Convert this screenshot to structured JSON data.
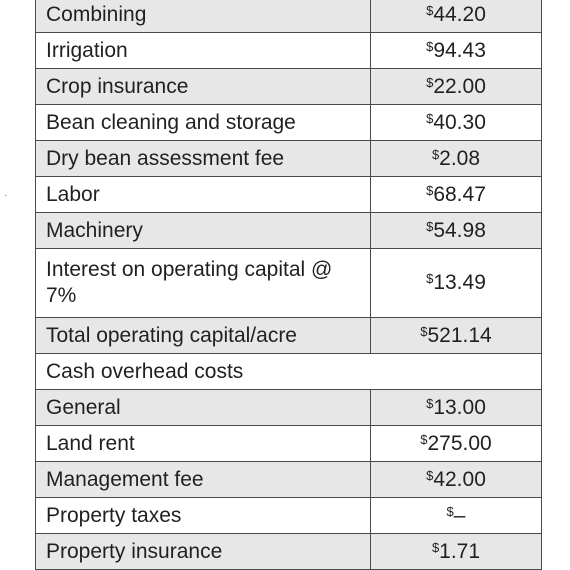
{
  "stray_mark": "·",
  "rows": [
    {
      "label": "Combining",
      "currency": "$",
      "amount": "44.20",
      "shaded": true,
      "tall": false
    },
    {
      "label": "Irrigation",
      "currency": "$",
      "amount": "94.43",
      "shaded": false,
      "tall": false
    },
    {
      "label": "Crop insurance",
      "currency": "$",
      "amount": "22.00",
      "shaded": true,
      "tall": false
    },
    {
      "label": "Bean cleaning and storage",
      "currency": "$",
      "amount": "40.30",
      "shaded": false,
      "tall": false
    },
    {
      "label": "Dry bean assessment fee",
      "currency": "$",
      "amount": "2.08",
      "shaded": true,
      "tall": false
    },
    {
      "label": "Labor",
      "currency": "$",
      "amount": "68.47",
      "shaded": false,
      "tall": false
    },
    {
      "label": "Machinery",
      "currency": "$",
      "amount": "54.98",
      "shaded": true,
      "tall": false
    },
    {
      "label": "Interest on operating capital @ 7%",
      "currency": "$",
      "amount": "13.49",
      "shaded": false,
      "tall": true
    },
    {
      "label": "Total operating capital/acre",
      "currency": "$",
      "amount": "521.14",
      "shaded": true,
      "tall": false
    },
    {
      "label": "Cash overhead costs",
      "section": true,
      "shaded": false,
      "tall": false
    },
    {
      "label": "General",
      "currency": "$",
      "amount": "13.00",
      "shaded": true,
      "tall": false
    },
    {
      "label": "Land rent",
      "currency": "$",
      "amount": "275.00",
      "shaded": false,
      "tall": false
    },
    {
      "label": "Management fee",
      "currency": "$",
      "amount": "42.00",
      "shaded": true,
      "tall": false
    },
    {
      "label": "Property taxes",
      "currency": "$",
      "amount": "–",
      "shaded": false,
      "tall": false
    },
    {
      "label": "Property insurance",
      "currency": "$",
      "amount": "1.71",
      "shaded": true,
      "tall": false
    }
  ]
}
